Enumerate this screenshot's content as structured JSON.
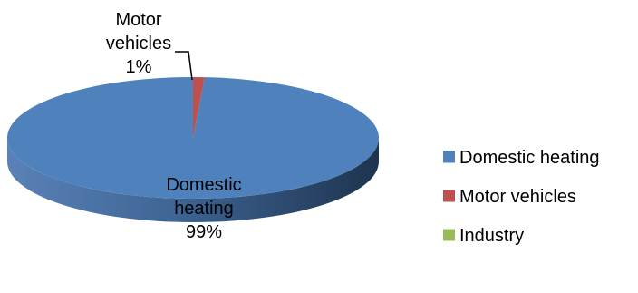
{
  "chart_data": {
    "type": "pie",
    "style": "3d",
    "title": "",
    "slices": [
      {
        "name": "Domestic heating",
        "value": 99,
        "label_lines": [
          "Domestic",
          "heating",
          "99%"
        ],
        "color": "#4F81BD",
        "side_color": "#2E4D73"
      },
      {
        "name": "Motor vehicles",
        "value": 1,
        "label_lines": [
          "Motor",
          "vehicles",
          "1%"
        ],
        "color": "#C0504D",
        "side_color": "#8A2E2C"
      },
      {
        "name": "Industry",
        "value": 0,
        "label_lines": [],
        "color": "#9BBB59",
        "side_color": "#6E8A3A"
      }
    ],
    "legend": {
      "position": "right",
      "items": [
        "Domestic heating",
        "Motor vehicles",
        "Industry"
      ]
    }
  }
}
